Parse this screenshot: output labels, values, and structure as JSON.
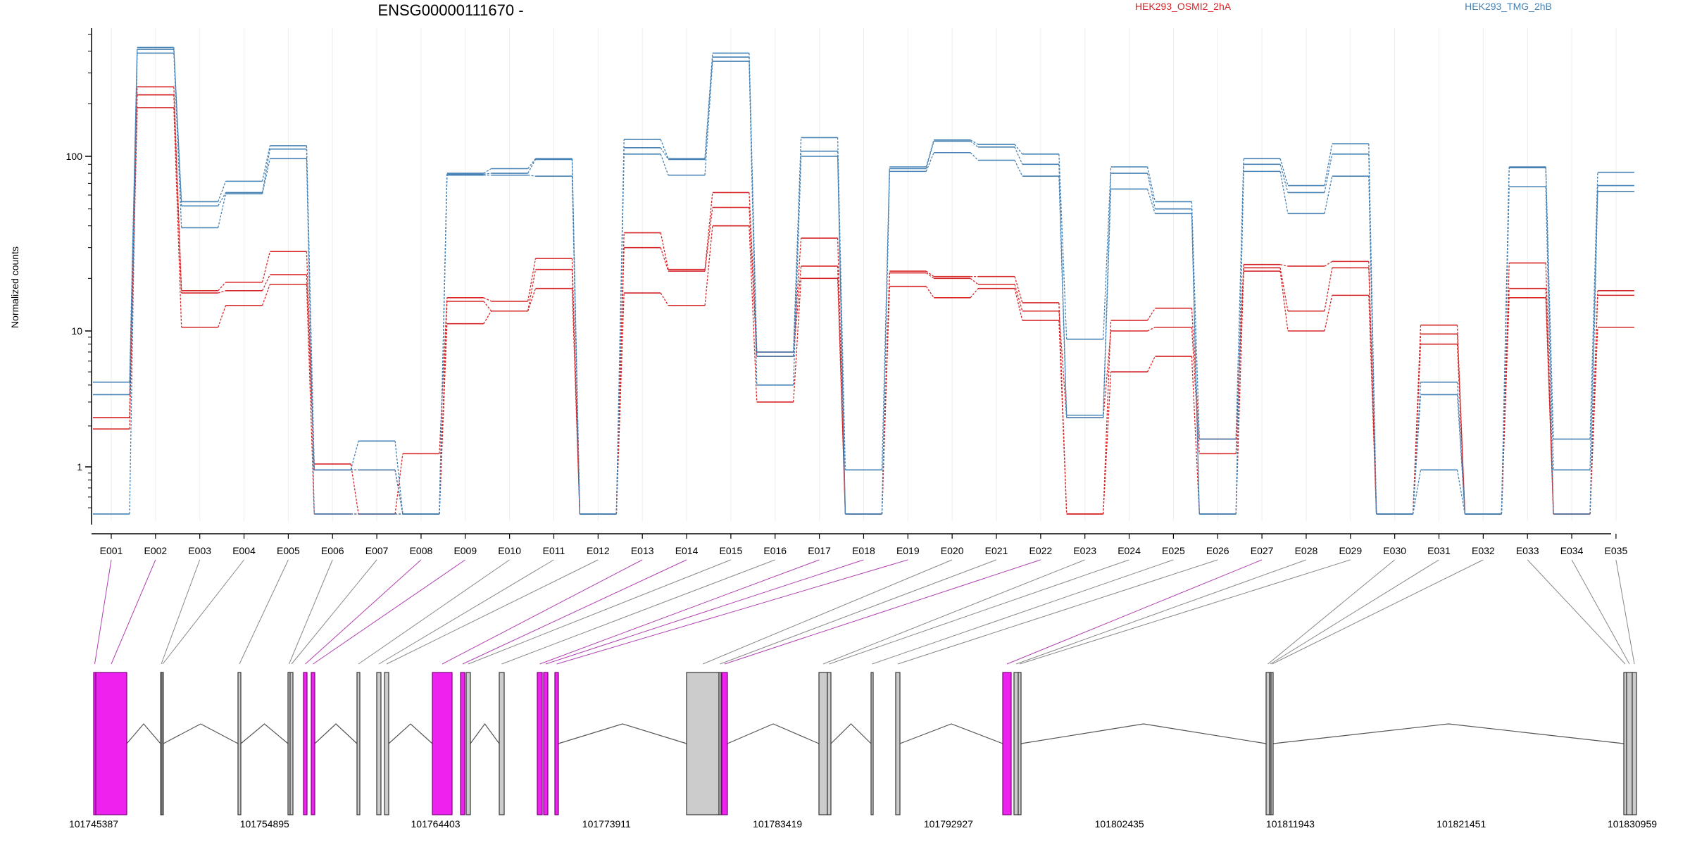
{
  "chart_data": {
    "type": "line",
    "title": "ENSG00000111670 -",
    "ylabel": "Normalized counts",
    "xlabel": "",
    "yscale": "log",
    "ylim": [
      0.45,
      700
    ],
    "yticks": [
      1,
      10,
      100
    ],
    "ytick_labels": [
      "1",
      "10",
      "100"
    ],
    "grid": "vertical-light",
    "legend_placement": "top-right",
    "categories": [
      "E001",
      "E002",
      "E003",
      "E004",
      "E005",
      "E006",
      "E007",
      "E008",
      "E009",
      "E010",
      "E011",
      "E012",
      "E013",
      "E014",
      "E015",
      "E016",
      "E017",
      "E018",
      "E019",
      "E020",
      "E021",
      "E022",
      "E023",
      "E024",
      "E025",
      "E026",
      "E027",
      "E028",
      "E029",
      "E030",
      "E031",
      "E032",
      "E033",
      "E034",
      "E035"
    ],
    "series": [
      {
        "name": "HEK293_OSMI2_2hA",
        "color": "#d62728",
        "values": [
          2.3,
          250,
          17,
          19,
          28.5,
          1.05,
          0.45,
          1.25,
          15.5,
          14.8,
          26,
          0.45,
          36.5,
          22.5,
          62,
          7,
          34,
          0.45,
          22,
          20.5,
          20.5,
          14.5,
          0.45,
          11.5,
          13.5,
          1.6,
          24,
          23.5,
          25,
          0.45,
          10.8,
          0.45,
          24.5,
          0.45,
          17
        ]
      },
      {
        "name": "",
        "color": "#d62728",
        "values": [
          2.3,
          225,
          16.5,
          17,
          21,
          0.95,
          0.95,
          0.45,
          14.8,
          13,
          22.5,
          0.45,
          30,
          22,
          51,
          6.5,
          23.5,
          0.45,
          21.5,
          20,
          18.5,
          13,
          2.3,
          10,
          10.5,
          1.25,
          23,
          13,
          23,
          0.45,
          9.5,
          0.45,
          17.5,
          0.45,
          16
        ]
      },
      {
        "name": "",
        "color": "#d62728",
        "values": [
          1.9,
          190,
          10.5,
          14,
          18.5,
          0.45,
          0.45,
          0.45,
          11,
          13,
          17.5,
          0.45,
          16.5,
          14,
          40,
          3,
          20,
          0.45,
          18,
          15.5,
          17.5,
          11.5,
          0.45,
          5,
          6.5,
          0.45,
          22,
          10,
          16,
          0.45,
          8,
          0.45,
          15.5,
          0.45,
          10.5
        ]
      },
      {
        "name": "HEK293_TMG_2hB",
        "color": "#4682b4",
        "values": [
          4.2,
          420,
          55,
          72,
          115,
          0.95,
          1.55,
          0.45,
          80,
          85,
          97,
          0.45,
          125,
          97,
          390,
          7,
          128,
          0.95,
          87,
          124,
          117,
          103,
          8.7,
          87,
          55,
          1.6,
          97,
          68,
          118,
          0.45,
          4.2,
          0.45,
          87,
          1.6,
          81
        ]
      },
      {
        "name": "",
        "color": "#4682b4",
        "values": [
          3.4,
          410,
          52,
          62,
          110,
          0.95,
          0.95,
          0.45,
          79,
          80,
          96,
          0.45,
          112,
          96,
          370,
          6.5,
          107,
          0.45,
          85,
          122,
          113,
          90,
          2.4,
          80,
          50,
          0.45,
          90,
          62,
          103,
          0.45,
          3.4,
          0.45,
          86,
          0.95,
          68
        ]
      },
      {
        "name": "",
        "color": "#4682b4",
        "values": [
          0.45,
          390,
          39,
          61,
          97,
          0.45,
          0.45,
          0.45,
          78,
          78,
          77,
          0.45,
          103,
          78,
          350,
          4,
          100,
          0.45,
          82,
          105,
          95,
          77,
          2.3,
          65,
          47,
          0.45,
          82,
          47,
          77,
          0.45,
          0.95,
          0.45,
          67,
          0.45,
          63
        ]
      }
    ],
    "gene_model": {
      "coordinate_ticks": [
        "101745387",
        "101754895",
        "101764403",
        "101773911",
        "101783419",
        "101792927",
        "101802435",
        "101811943",
        "101821451",
        "101830959"
      ],
      "exon_highlight_color": "#ee22ee",
      "exon_default_color": "#cccccc"
    }
  }
}
